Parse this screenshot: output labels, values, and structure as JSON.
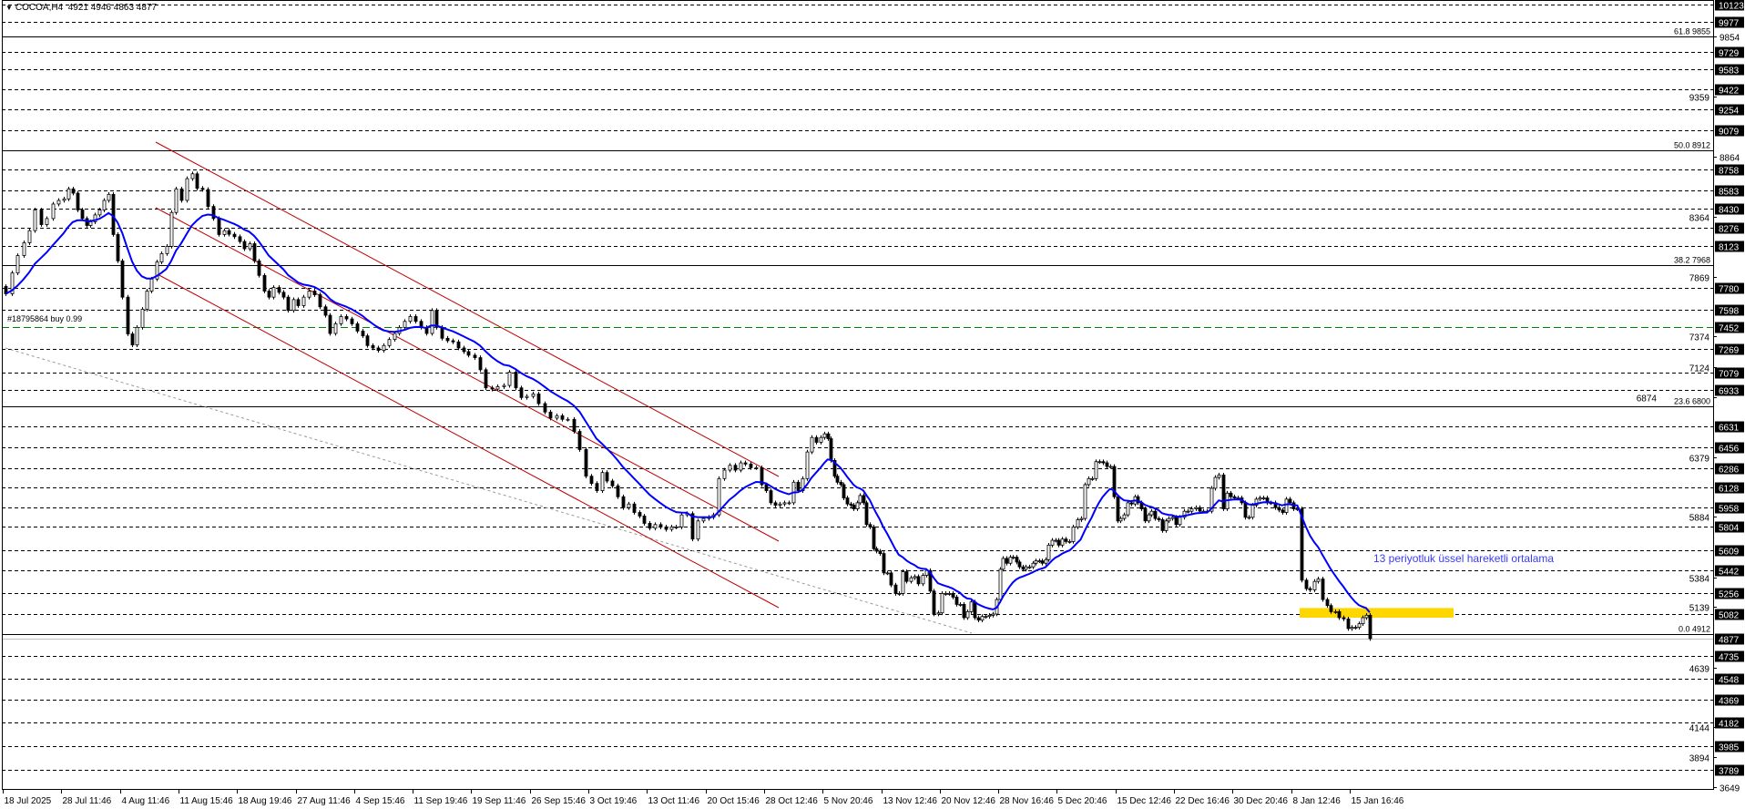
{
  "header": {
    "symbol": "COCOA,H4",
    "ohlc": "4921 4946 4863 4877"
  },
  "order_line": {
    "label": "#18795864 buy 0.99",
    "price": 7452,
    "color": "#008000"
  },
  "annotation": "13 periyotluk üssel hareketli ortalama",
  "chart_data": {
    "type": "candlestick",
    "symbol": "COCOA",
    "timeframe": "H4",
    "ylim": [
      3649,
      10123
    ],
    "grid": false,
    "indicator": {
      "type": "EMA",
      "period": 13,
      "color": "#0000ff"
    },
    "colors": {
      "bull_body": "#ffffff",
      "bear_body": "#000000",
      "fib": "#000000",
      "channel": "#c00000",
      "trendline": "#999999",
      "highlight_zone": "#ffd700",
      "current_price_line": "#c0c0c0"
    },
    "current_price": 4877,
    "highlight_zone": {
      "from": 5050,
      "to": 5130
    },
    "x_ticks": [
      "18 Jul 2025",
      "28 Jul 11:46",
      "4 Aug 11:46",
      "11 Aug 15:46",
      "18 Aug 19:46",
      "27 Aug 11:46",
      "4 Sep 15:46",
      "11 Sep 19:46",
      "19 Sep 11:46",
      "26 Sep 15:46",
      "3 Oct 19:46",
      "13 Oct 11:46",
      "20 Oct 15:46",
      "28 Oct 12:46",
      "5 Nov 20:46",
      "13 Nov 12:46",
      "20 Nov 12:46",
      "28 Nov 16:46",
      "5 Dec 20:46",
      "15 Dec 12:46",
      "22 Dec 16:46",
      "30 Dec 20:46",
      "8 Jan 12:46",
      "15 Jan 16:46"
    ],
    "y_ticks": [
      9854,
      9359,
      8864,
      8364,
      7869,
      7374,
      7124,
      6874,
      6379,
      5884,
      5384,
      5139,
      4639,
      4144,
      3894,
      3649
    ],
    "levels": [
      10123,
      9977,
      9729,
      9583,
      9422,
      9254,
      9079,
      8758,
      8583,
      8430,
      8276,
      8123,
      7780,
      7598,
      7269,
      7079,
      6933,
      6631,
      6456,
      6286,
      6128,
      5958,
      5804,
      5609,
      5442,
      5256,
      5082,
      4735,
      4548,
      4369,
      4182,
      3985,
      3789
    ],
    "fib_levels": [
      {
        "label": "61.8 9855",
        "price": 9855
      },
      {
        "label": "50.0 8912",
        "price": 8912
      },
      {
        "label": "38.2 7968",
        "price": 7968
      },
      {
        "label": "23.6 6800",
        "price": 6800
      },
      {
        "label": "0.0 4912",
        "price": 4912
      }
    ],
    "segments": [
      {
        "from": "18 Jul 2025",
        "closes": [
          7728,
          7900,
          8044,
          8150,
          8250,
          8421,
          8300,
          8350,
          8470,
          8500
        ]
      },
      {
        "from": "28 Jul 11:46",
        "closes": [
          8512,
          8595,
          8560,
          8421,
          8350,
          8293,
          8323,
          8380,
          8421,
          8500,
          8550,
          8218,
          8000
        ]
      },
      {
        "from": "4 Aug 11:46",
        "closes": [
          7700,
          7396,
          7305,
          7450,
          7600,
          7750,
          7850,
          7991,
          8060,
          8120,
          8400,
          8595
        ]
      },
      {
        "from": "11 Aug 15:46",
        "closes": [
          8500,
          8680,
          8720,
          8600,
          8590,
          8450,
          8350,
          8218,
          8250,
          8220,
          8200
        ]
      },
      {
        "from": "18 Aug 19:46",
        "closes": [
          8160,
          8100,
          8142,
          8000,
          7880,
          7750,
          7700,
          7780,
          7740,
          7700,
          7590,
          7680
        ]
      },
      {
        "from": "27 Aug 11:46",
        "closes": [
          7630,
          7700,
          7750,
          7720,
          7620,
          7550,
          7400,
          7480,
          7540,
          7520,
          7480
        ]
      },
      {
        "from": "4 Sep 15:46",
        "closes": [
          7420,
          7380,
          7300,
          7280,
          7260,
          7300,
          7350,
          7400,
          7450,
          7500,
          7540
        ]
      },
      {
        "from": "11 Sep 19:46",
        "closes": [
          7500,
          7450,
          7400,
          7590,
          7450,
          7360,
          7340,
          7330,
          7280,
          7250,
          7220
        ]
      },
      {
        "from": "19 Sep 11:46",
        "closes": [
          7200,
          7100,
          6950,
          6940,
          6960,
          6970,
          7080,
          6950,
          6870,
          6880
        ]
      },
      {
        "from": "26 Sep 15:46",
        "closes": [
          6900,
          6820,
          6750,
          6700,
          6720,
          6690,
          6690,
          6590,
          6440,
          6220
        ]
      },
      {
        "from": "3 Oct 19:46",
        "closes": [
          6160,
          6100,
          6250,
          6180,
          6140,
          6050,
          5960,
          5990,
          5920,
          5890,
          5830
        ]
      },
      {
        "from": "13 Oct 11:46",
        "closes": [
          5790,
          5820,
          5800,
          5780,
          5800,
          5800,
          5900,
          5910,
          5700,
          5850,
          5870
        ]
      },
      {
        "from": "20 Oct 15:46",
        "closes": [
          5880,
          5900,
          6200,
          6270,
          6310,
          6270,
          6330,
          6320,
          6290,
          6290,
          6150
        ]
      },
      {
        "from": "28 Oct 12:46",
        "closes": [
          6100,
          6000,
          5980,
          5990,
          6000,
          6000,
          6170,
          6100,
          6200,
          6420,
          6540,
          6500,
          6540
        ]
      },
      {
        "from": "5 Nov 20:46",
        "closes": [
          6570,
          6530,
          6350,
          6220,
          6170,
          6150,
          6040,
          5990,
          5980,
          5950,
          6000,
          6060,
          6000,
          5820,
          5800,
          5620,
          5600,
          5580
        ]
      },
      {
        "from": "13 Nov 12:46",
        "closes": [
          5420,
          5420,
          5320,
          5250,
          5250,
          5430,
          5350,
          5380,
          5390,
          5330,
          5400,
          5440,
          5270,
          5080,
          5090
        ]
      },
      {
        "from": "20 Nov 12:46",
        "closes": [
          5250,
          5250,
          5250,
          5220,
          5160,
          5160,
          5050,
          5100,
          5180,
          5050,
          5030,
          5060,
          5060,
          5070,
          5080,
          5200
        ]
      },
      {
        "from": "28 Nov 16:46",
        "closes": [
          5450,
          5540,
          5500,
          5550,
          5550,
          5510,
          5470,
          5450,
          5470,
          5470,
          5500,
          5520,
          5520,
          5500,
          5530,
          5650,
          5690,
          5690
        ]
      },
      {
        "from": "5 Dec 20:46",
        "closes": [
          5650,
          5700,
          5680,
          5680,
          5800,
          5860,
          5870,
          6150,
          6200,
          6200,
          6340,
          6340,
          6330,
          6300,
          6300,
          6050
        ]
      },
      {
        "from": "15 Dec 12:46",
        "closes": [
          5850,
          5870,
          5900,
          6000,
          5990,
          6050,
          6000,
          5950,
          5850,
          5900,
          5930,
          5870,
          5860,
          5770,
          5850,
          5870,
          5880
        ]
      },
      {
        "from": "22 Dec 16:46",
        "closes": [
          5820,
          5880,
          5930,
          5930,
          5950,
          5960,
          5930,
          5930,
          5930,
          6120,
          6210,
          6230,
          5950,
          6080,
          6050
        ]
      },
      {
        "from": "30 Dec 20:46",
        "closes": [
          6040,
          6040,
          6000,
          5880,
          5880,
          5980,
          6030,
          6040,
          6040,
          6000,
          6000,
          5960,
          5940,
          5920,
          6030,
          6000
        ]
      },
      {
        "from": "8 Jan 12:46",
        "closes": [
          5950,
          5950,
          5360,
          5290,
          5280,
          5350,
          5370,
          5200,
          5150,
          5100,
          5100,
          5050,
          5040,
          4960
        ]
      },
      {
        "from": "15 Jan 16:46",
        "closes": [
          4970,
          4970,
          5000,
          5050,
          5070,
          4877
        ]
      }
    ]
  }
}
